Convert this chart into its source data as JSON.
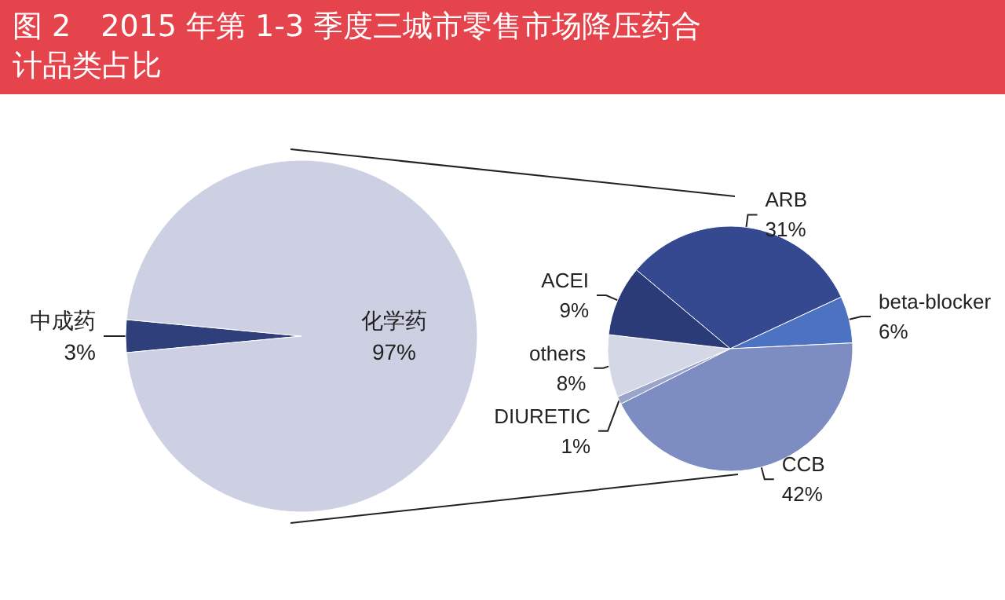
{
  "chart_data": [
    {
      "type": "pie",
      "title": "图 2　2015 年第 1-3 季度三城市零售市场降压药合计品类占比",
      "categories": [
        "中成药",
        "化学药"
      ],
      "values": [
        3,
        97
      ],
      "colors": [
        "#2e3f7c",
        "#cdd0e2"
      ],
      "value_labels": [
        "3%",
        "97%"
      ]
    },
    {
      "type": "pie",
      "categories": [
        "ARB",
        "beta-blocker",
        "CCB",
        "DIURETIC",
        "others",
        "ACEI"
      ],
      "values": [
        31,
        6,
        42,
        1,
        8,
        9
      ],
      "colors": [
        "#34498f",
        "#4d72c2",
        "#7d8dc2",
        "#9aa5ca",
        "#d3d7e6",
        "#2b3b78"
      ],
      "value_labels": [
        "31%",
        "6%",
        "42%",
        "1%",
        "8%",
        "9%"
      ]
    }
  ]
}
